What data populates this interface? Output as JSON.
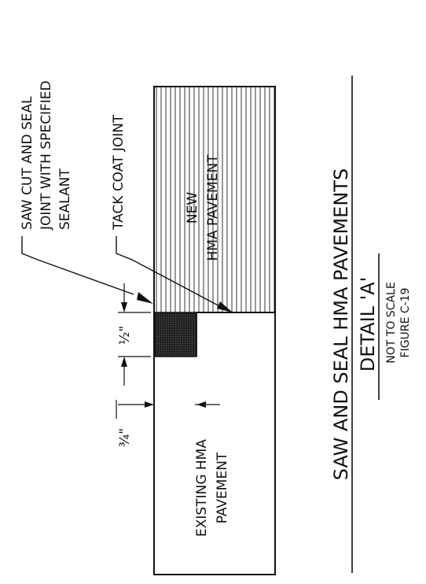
{
  "labels": {
    "saw_cut_line1": "SAW CUT AND SEAL",
    "saw_cut_line2": "JOINT WITH SPECIFIED",
    "saw_cut_line3": "SEALANT",
    "tack_coat": "TACK COAT JOINT",
    "new_line1": "NEW",
    "new_line2": "HMA PAVEMENT",
    "existing_line1": "EXISTING HMA",
    "existing_line2": "PAVEMENT",
    "dim_half": "½\"",
    "dim_three_quarter": "¾\""
  },
  "title": {
    "main": "SAW AND SEAL HMA PAVEMENTS",
    "detail": "DETAIL 'A'",
    "scale": "NOT TO SCALE",
    "figure": "FIGURE C-19"
  },
  "colors": {
    "ink": "#111111",
    "sealant": "#1a1a1a"
  }
}
